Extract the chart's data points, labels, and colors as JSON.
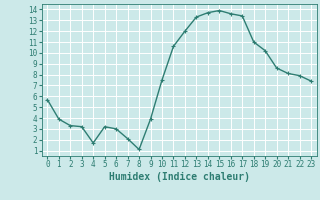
{
  "x": [
    0,
    1,
    2,
    3,
    4,
    5,
    6,
    7,
    8,
    9,
    10,
    11,
    12,
    13,
    14,
    15,
    16,
    17,
    18,
    19,
    20,
    21,
    22,
    23
  ],
  "y": [
    5.7,
    3.9,
    3.3,
    3.2,
    1.7,
    3.2,
    3.0,
    2.1,
    1.1,
    3.9,
    7.5,
    10.6,
    12.0,
    13.3,
    13.7,
    13.9,
    13.6,
    13.4,
    11.0,
    10.2,
    8.6,
    8.1,
    7.9,
    7.4
  ],
  "line_color": "#2e7d72",
  "marker": "+",
  "marker_size": 3,
  "bg_color": "#cce9e9",
  "grid_color": "#ffffff",
  "xlabel": "Humidex (Indice chaleur)",
  "xlim": [
    -0.5,
    23.5
  ],
  "ylim": [
    0.5,
    14.5
  ],
  "yticks": [
    1,
    2,
    3,
    4,
    5,
    6,
    7,
    8,
    9,
    10,
    11,
    12,
    13,
    14
  ],
  "xticks": [
    0,
    1,
    2,
    3,
    4,
    5,
    6,
    7,
    8,
    9,
    10,
    11,
    12,
    13,
    14,
    15,
    16,
    17,
    18,
    19,
    20,
    21,
    22,
    23
  ],
  "title_color": "#2e7d72",
  "xlabel_fontsize": 7,
  "tick_fontsize": 5.5,
  "line_width": 1.0
}
